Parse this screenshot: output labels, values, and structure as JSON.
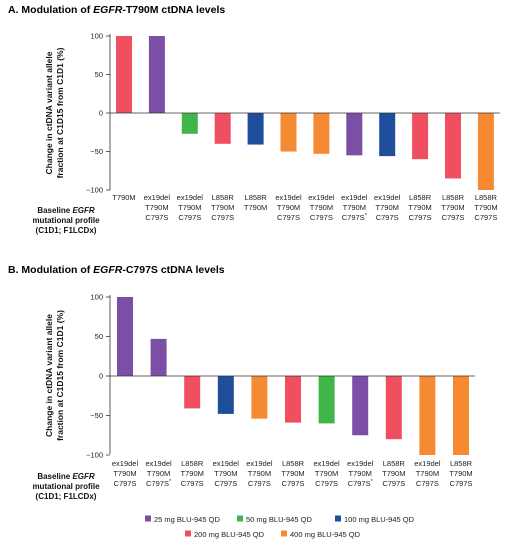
{
  "chart_data": [
    {
      "type": "bar",
      "panel": "A.",
      "title_pre": "Modulation of ",
      "title_gene": "EGFR",
      "title_post": "-T790M ctDNA levels",
      "ylabel_line1": "Change in ctDNA variant allele",
      "ylabel_line2": "fraction at C1D15 from C1D1 (%)",
      "ylim": [
        -100,
        100
      ],
      "yticks": [
        "100",
        "50",
        "0",
        "−50",
        "−100"
      ],
      "baseline_label": [
        "Baseline EGFR",
        "mutational profile",
        "(C1D1; F1LCDx)"
      ],
      "categories": [
        [
          "T790M"
        ],
        [
          "ex19del",
          "T790M",
          "C797S"
        ],
        [
          "ex19del",
          "T790M",
          "C797S"
        ],
        [
          "L858R",
          "T790M",
          "C797S"
        ],
        [
          "L858R",
          "T790M"
        ],
        [
          "ex19del",
          "T790M",
          "C797S"
        ],
        [
          "ex19del",
          "T790M",
          "C797S"
        ],
        [
          "ex19del",
          "T790M",
          "C797S*"
        ],
        [
          "ex19del",
          "T790M",
          "C797S"
        ],
        [
          "L858R",
          "T790M",
          "C797S"
        ],
        [
          "L858R",
          "T790M",
          "C797S"
        ],
        [
          "L858R",
          "T790M",
          "C797S"
        ]
      ],
      "values": [
        100,
        100,
        -27,
        -40,
        -41,
        -50,
        -53,
        -55,
        -56,
        -60,
        -85,
        -100
      ],
      "dose": [
        "200 mg",
        "25 mg",
        "50 mg",
        "200 mg",
        "100 mg",
        "400 mg",
        "400 mg",
        "25 mg",
        "100 mg",
        "200 mg",
        "200 mg",
        "400 mg"
      ]
    },
    {
      "type": "bar",
      "panel": "B.",
      "title_pre": "Modulation of ",
      "title_gene": "EGFR",
      "title_post": "-C797S ctDNA levels",
      "ylabel_line1": "Change in ctDNA variant allele",
      "ylabel_line2": "fraction at C1D15 from C1D1 (%)",
      "ylim": [
        -100,
        100
      ],
      "yticks": [
        "100",
        "50",
        "0",
        "−50",
        "−100"
      ],
      "baseline_label": [
        "Baseline EGFR",
        "mutational profile",
        "(C1D1; F1LCDx)"
      ],
      "categories": [
        [
          "ex19del",
          "T790M",
          "C797S"
        ],
        [
          "ex19del",
          "T790M",
          "C797S*"
        ],
        [
          "L858R",
          "T790M",
          "C797S"
        ],
        [
          "ex19del",
          "T790M",
          "C797S"
        ],
        [
          "ex19del",
          "T790M",
          "C797S"
        ],
        [
          "L858R",
          "T790M",
          "C797S"
        ],
        [
          "ex19del",
          "T790M",
          "C797S"
        ],
        [
          "ex19del",
          "T790M",
          "C797S*"
        ],
        [
          "L858R",
          "T790M",
          "C797S"
        ],
        [
          "ex19del",
          "T790M",
          "C797S"
        ],
        [
          "L858R",
          "T790M",
          "C797S"
        ]
      ],
      "values": [
        100,
        47,
        -41,
        -48,
        -54,
        -59,
        -60,
        -75,
        -80,
        -100,
        -100
      ],
      "dose": [
        "25 mg",
        "25 mg",
        "200 mg",
        "100 mg",
        "400 mg",
        "200 mg",
        "50 mg",
        "25 mg",
        "200 mg",
        "400 mg",
        "400 mg"
      ]
    }
  ],
  "legend": [
    {
      "key": "25 mg",
      "label": "25 mg BLU-945 QD",
      "color": "#7B4FA6"
    },
    {
      "key": "50 mg",
      "label": "50 mg BLU-945 QD",
      "color": "#3FB54A"
    },
    {
      "key": "100 mg",
      "label": "100 mg BLU-945 QD",
      "color": "#1F4E9C"
    },
    {
      "key": "200 mg",
      "label": "200 mg BLU-945 QD",
      "color": "#EF4F5F"
    },
    {
      "key": "400 mg",
      "label": "400 mg BLU-945 QD",
      "color": "#F58A32"
    }
  ]
}
